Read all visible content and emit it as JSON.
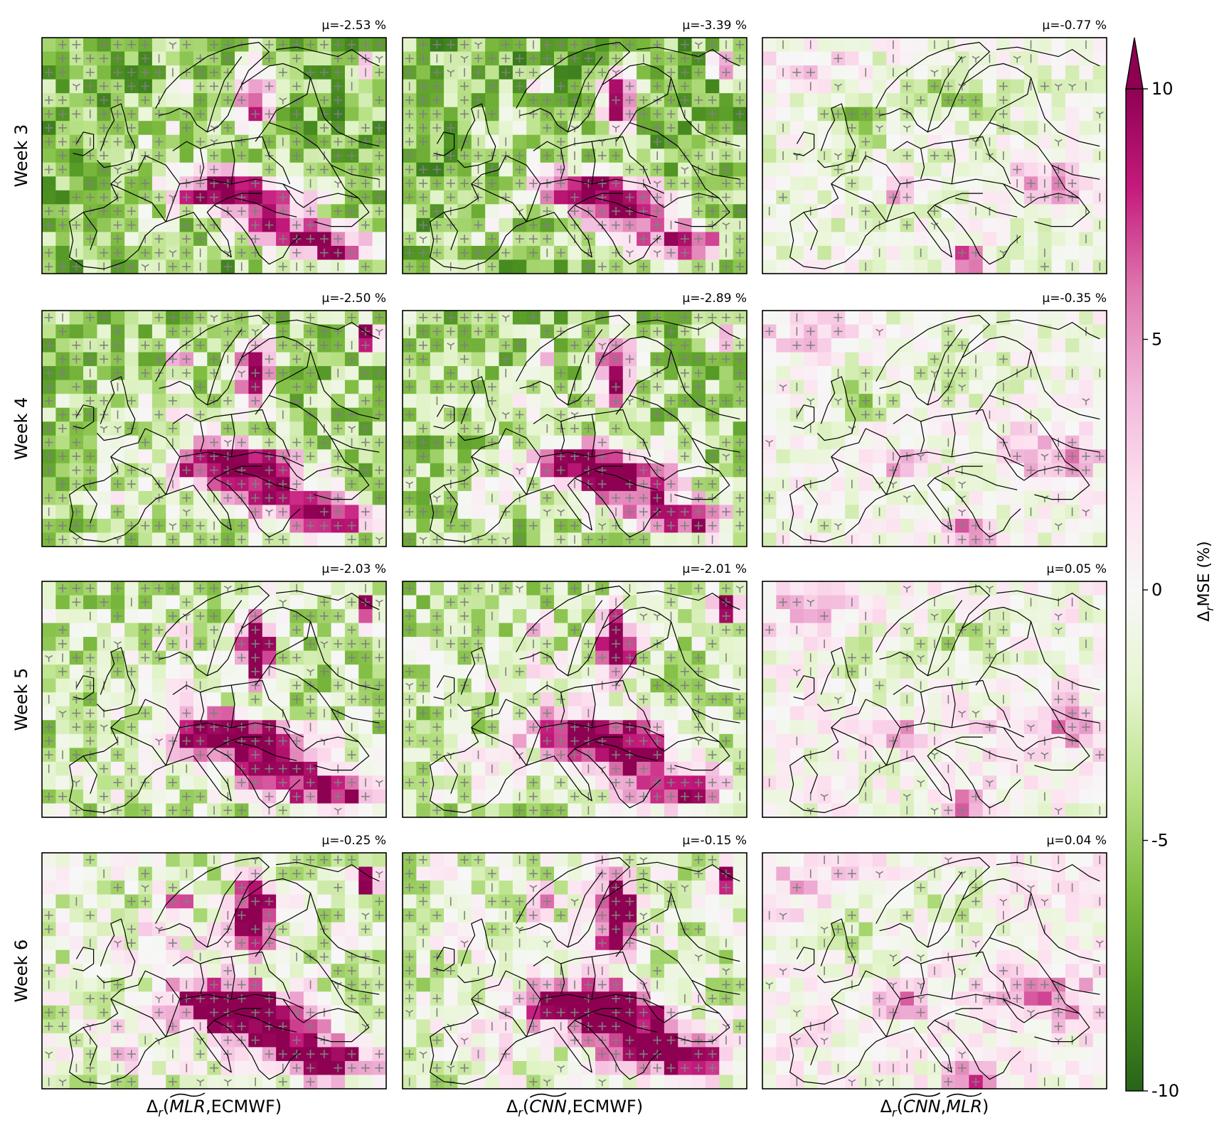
{
  "chart_data": {
    "type": "heatmap",
    "title": "",
    "rows": [
      "Week 3",
      "Week 4",
      "Week 5",
      "Week 6"
    ],
    "columns": [
      "Δr(MLR,ECMWF)",
      "Δr(CNN,ECMWF)",
      "Δr(CNN,MLR)"
    ],
    "column_labels": [
      {
        "prefix": "Δ",
        "sub": "r",
        "args": [
          {
            "text": "MLR",
            "tilde": true
          },
          {
            "text": "ECMWF",
            "tilde": false
          }
        ]
      },
      {
        "prefix": "Δ",
        "sub": "r",
        "args": [
          {
            "text": "CNN",
            "tilde": true
          },
          {
            "text": "ECMWF",
            "tilde": false
          }
        ]
      },
      {
        "prefix": "Δ",
        "sub": "r",
        "args": [
          {
            "text": "CNN",
            "tilde": true
          },
          {
            "text": "MLR",
            "tilde": true
          }
        ]
      }
    ],
    "panels": [
      [
        {
          "mean_label": "μ=-2.53 %",
          "mean": -2.53
        },
        {
          "mean_label": "μ=-3.39 %",
          "mean": -3.39
        },
        {
          "mean_label": "μ=-0.77 %",
          "mean": -0.77
        }
      ],
      [
        {
          "mean_label": "μ=-2.50 %",
          "mean": -2.5
        },
        {
          "mean_label": "μ=-2.89 %",
          "mean": -2.89
        },
        {
          "mean_label": "μ=-0.35 %",
          "mean": -0.35
        }
      ],
      [
        {
          "mean_label": "μ=-2.03 %",
          "mean": -2.03
        },
        {
          "mean_label": "μ=-2.01 %",
          "mean": -2.01
        },
        {
          "mean_label": "μ=0.05 %",
          "mean": 0.05
        }
      ],
      [
        {
          "mean_label": "μ=-0.25 %",
          "mean": -0.25
        },
        {
          "mean_label": "μ=-0.15 %",
          "mean": -0.15
        },
        {
          "mean_label": "μ=0.04 %",
          "mean": 0.04
        }
      ]
    ],
    "grid": {
      "cols": 25,
      "rows": 17
    },
    "colorbar": {
      "label_base": "Δ",
      "label_sub": "r",
      "label_rest": "MSE (%)",
      "ticks": [
        10,
        5,
        0,
        -5,
        -10
      ],
      "tick_labels": [
        "10",
        "5",
        "0",
        "-5",
        "-10"
      ],
      "range": [
        -10,
        10
      ],
      "extend": "max",
      "colormap": [
        "#276419",
        "#4d9221",
        "#7fbc41",
        "#b8e186",
        "#e6f5d0",
        "#f7f7f7",
        "#fde0ef",
        "#f1b6da",
        "#de77ae",
        "#c51b7d",
        "#8e0152"
      ]
    },
    "significance_markers": {
      "color": "#808080",
      "symbols": [
        "plus",
        "tri",
        "bar"
      ]
    }
  }
}
